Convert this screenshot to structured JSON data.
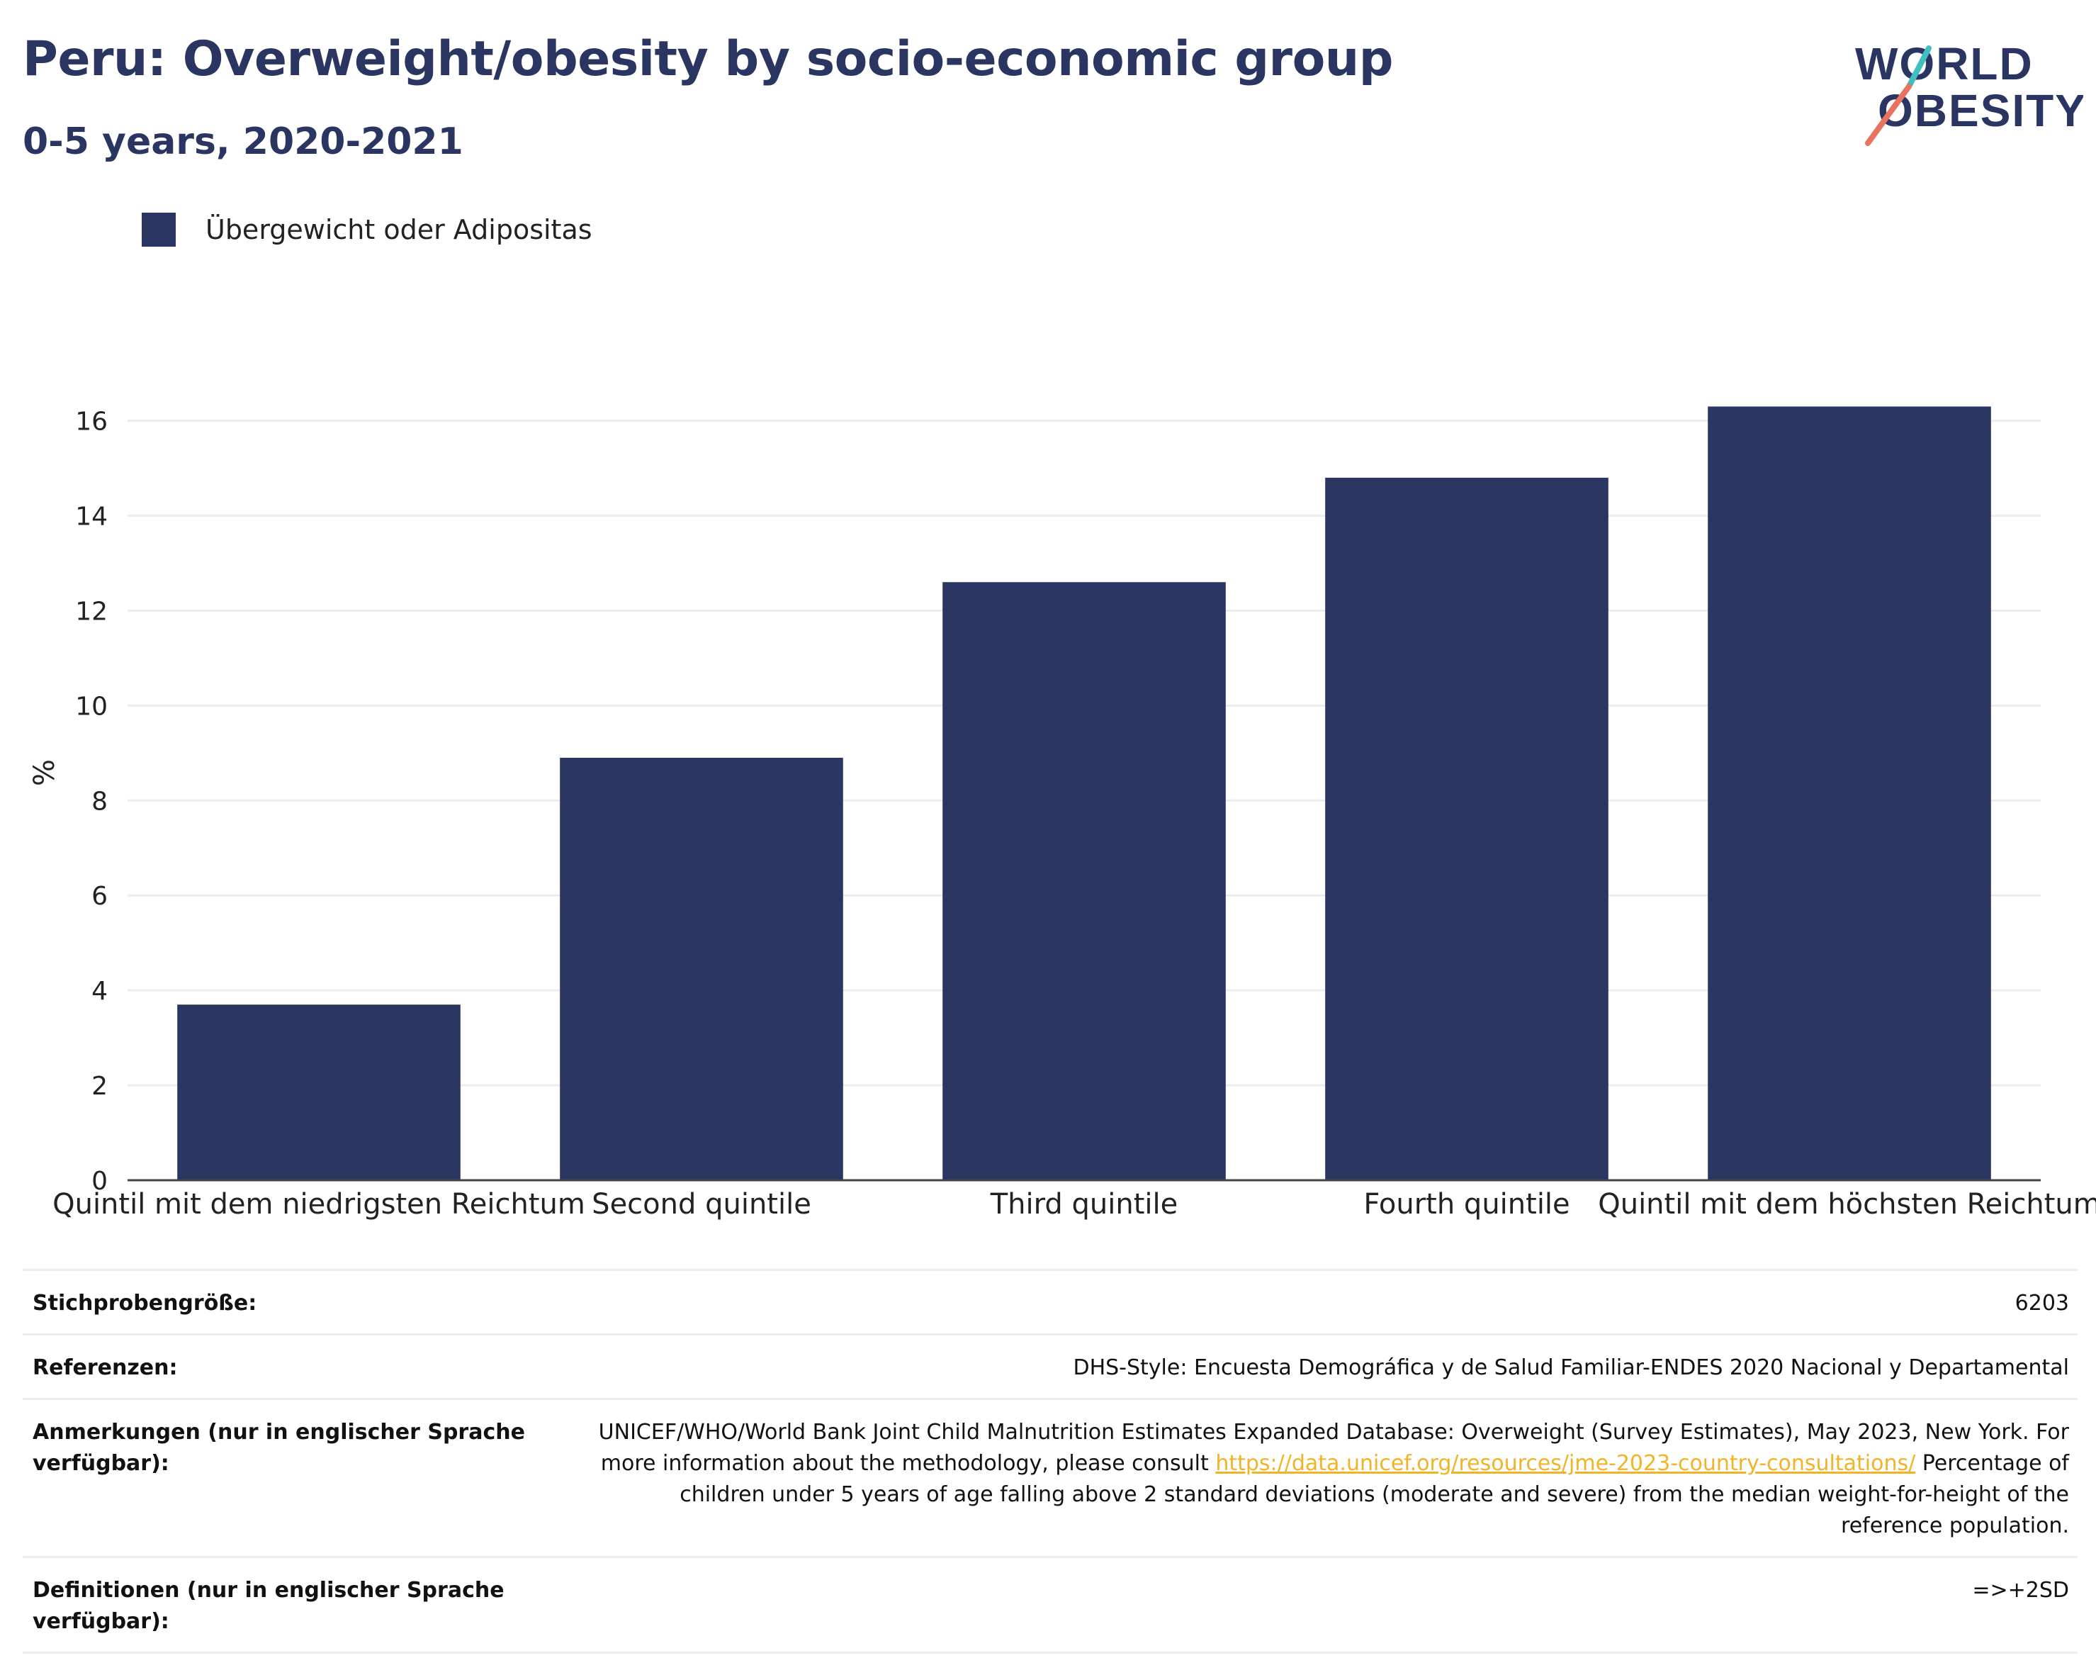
{
  "title": "Peru: Overweight/obesity by socio-economic group",
  "subtitle": "0-5 years, 2020-2021",
  "logo": {
    "line1": "WORLD",
    "line2": "OBESITY",
    "accent_teal": "#3fbfbf",
    "accent_coral": "#e8735f"
  },
  "legend": {
    "label": "Übergewicht oder Adipositas",
    "color": "#2a3561"
  },
  "chart_data": {
    "type": "bar",
    "categories": [
      "Quintil mit dem niedrigsten Reichtum",
      "Second quintile",
      "Third quintile",
      "Fourth quintile",
      "Quintil mit dem höchsten Reichtum"
    ],
    "series": [
      {
        "name": "Übergewicht oder Adipositas",
        "values": [
          3.7,
          8.9,
          12.6,
          14.8,
          16.3
        ],
        "color": "#2a3561"
      }
    ],
    "ylabel": "%",
    "xlabel": "",
    "ylim": [
      0,
      16.8
    ],
    "yticks": [
      0,
      2,
      4,
      6,
      8,
      10,
      12,
      14,
      16
    ],
    "grid": true,
    "legend_position": "top-left"
  },
  "info": {
    "rows": [
      {
        "key": "Stichprobengröße:",
        "value": "6203"
      },
      {
        "key": "Referenzen:",
        "value": "DHS-Style: Encuesta Demográfica y de Salud Familiar-ENDES 2020 Nacional y Departamental"
      },
      {
        "key": "Anmerkungen (nur in englischer Sprache verfügbar):",
        "value_pre": "UNICEF/WHO/World Bank Joint Child Malnutrition Estimates Expanded Database: Overweight (Survey Estimates), May 2023, New York. For more information about the methodology, please consult ",
        "link": "https://data.unicef.org/resources/jme-2023-country-consultations/",
        "value_post": " Percentage of children under 5 years of age falling above 2 standard deviations (moderate and severe) from the median weight-for-height of the reference population."
      },
      {
        "key": "Definitionen (nur in englischer Sprache verfügbar):",
        "value": "=>+2SD"
      }
    ]
  }
}
